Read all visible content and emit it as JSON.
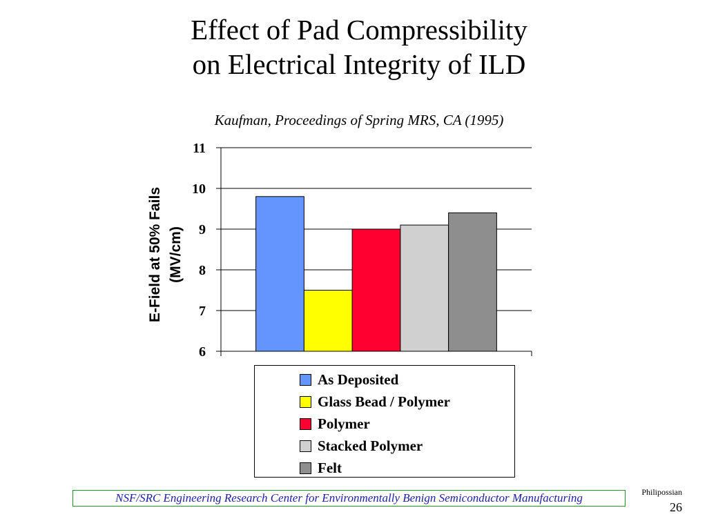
{
  "slide": {
    "title_line1": "Effect of Pad Compressibility",
    "title_line2": "on Electrical Integrity of ILD",
    "subtitle": "Kaufman, Proceedings of Spring MRS, CA (1995)",
    "footer": "NSF/SRC Engineering Research Center for Environmentally Benign Semiconductor Manufacturing",
    "author": "Philipossian",
    "page_number": "26"
  },
  "colors": {
    "footer_border": "#1a9a1a",
    "footer_text": "#1d1da8"
  },
  "chart_data": {
    "type": "bar",
    "title": "",
    "ylabel_line1": "E-Field at 50% Fails",
    "ylabel_line2": "(MV/cm)",
    "xlabel": "",
    "ylim": [
      6,
      11
    ],
    "yticks": [
      "6",
      "7",
      "8",
      "9",
      "10",
      "11"
    ],
    "grid": true,
    "legend_position": "bottom",
    "series": [
      {
        "name": "As Deposited",
        "value": 9.8,
        "color": "#6495ff"
      },
      {
        "name": "Glass Bead / Polymer",
        "value": 7.5,
        "color": "#ffff00"
      },
      {
        "name": "Polymer",
        "value": 9.0,
        "color": "#ff0030"
      },
      {
        "name": "Stacked Polymer",
        "value": 9.1,
        "color": "#d0d0d0"
      },
      {
        "name": "Felt",
        "value": 9.4,
        "color": "#8e8e8e"
      }
    ]
  }
}
